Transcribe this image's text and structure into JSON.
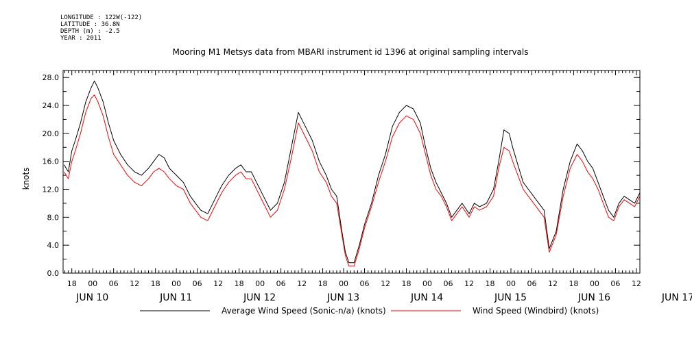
{
  "header": {
    "longitude": "LONGITUDE : 122W(-122)",
    "latitude": "LATITUDE : 36.8N",
    "depth": "DEPTH (m) : -2.5",
    "year": "YEAR : 2011"
  },
  "chart_data": {
    "type": "line",
    "title": "Mooring M1 Metsys data from MBARI instrument id 1396 at original sampling intervals",
    "ylabel": "knots",
    "ylim": [
      0,
      29
    ],
    "yticks": [
      0.0,
      4.0,
      8.0,
      12.0,
      16.0,
      20.0,
      24.0,
      28.0
    ],
    "ytick_labels": [
      "0.0",
      "4.0",
      "8.0",
      "12.0",
      "16.0",
      "20.0",
      "24.0",
      "28.0"
    ],
    "x_unit": "hours since Jun 10 00:00",
    "xlim": [
      -8.5,
      157
    ],
    "xticks": [
      {
        "h": -6,
        "label": "18"
      },
      {
        "h": 0,
        "label": "00"
      },
      {
        "h": 6,
        "label": "06"
      },
      {
        "h": 12,
        "label": "12"
      },
      {
        "h": 18,
        "label": "18"
      },
      {
        "h": 24,
        "label": "00"
      },
      {
        "h": 30,
        "label": "06"
      },
      {
        "h": 36,
        "label": "12"
      },
      {
        "h": 42,
        "label": "18"
      },
      {
        "h": 48,
        "label": "00"
      },
      {
        "h": 54,
        "label": "06"
      },
      {
        "h": 60,
        "label": "12"
      },
      {
        "h": 66,
        "label": "18"
      },
      {
        "h": 72,
        "label": "00"
      },
      {
        "h": 78,
        "label": "06"
      },
      {
        "h": 84,
        "label": "12"
      },
      {
        "h": 90,
        "label": "18"
      },
      {
        "h": 96,
        "label": "00"
      },
      {
        "h": 102,
        "label": "06"
      },
      {
        "h": 108,
        "label": "12"
      },
      {
        "h": 114,
        "label": "18"
      },
      {
        "h": 120,
        "label": "00"
      },
      {
        "h": 126,
        "label": "06"
      },
      {
        "h": 132,
        "label": "12"
      },
      {
        "h": 138,
        "label": "18"
      },
      {
        "h": 144,
        "label": "00"
      },
      {
        "h": 150,
        "label": "06"
      },
      {
        "h": 156,
        "label": "12"
      }
    ],
    "date_labels": [
      {
        "h": 0,
        "label": "JUN 10"
      },
      {
        "h": 24,
        "label": "JUN 11"
      },
      {
        "h": 48,
        "label": "JUN 12"
      },
      {
        "h": 72,
        "label": "JUN 13"
      },
      {
        "h": 96,
        "label": "JUN 14"
      },
      {
        "h": 120,
        "label": "JUN 15"
      },
      {
        "h": 144,
        "label": "JUN 16"
      },
      {
        "h": 168,
        "label": "JUN 17"
      }
    ],
    "series": [
      {
        "name": "Average Wind Speed (Sonic-n/a) (knots)",
        "color": "#000000",
        "x": [
          -8.2,
          -7,
          -6,
          -5,
          -3.5,
          -2,
          -0.5,
          0.5,
          1.5,
          3,
          4.5,
          6,
          8,
          10,
          12,
          14,
          16,
          17.5,
          19,
          20.5,
          22,
          24,
          26,
          28,
          29.5,
          31,
          33,
          35,
          37,
          39,
          41,
          42.5,
          44,
          45.5,
          47,
          49,
          51,
          53,
          55,
          57,
          59,
          61,
          63,
          65,
          67,
          68.5,
          70,
          71.5,
          72.5,
          73.5,
          75,
          76.5,
          78,
          80,
          82,
          84,
          86,
          88,
          90,
          92,
          94,
          95.5,
          97,
          98.5,
          100,
          101.5,
          103,
          104.5,
          106,
          108,
          109.5,
          111,
          113,
          115,
          116.5,
          118,
          119.5,
          120.5,
          122,
          123.5,
          125,
          126.5,
          128,
          129.5,
          131,
          133,
          135,
          137,
          139,
          140.5,
          142,
          143.5,
          145,
          146.5,
          148,
          149.5,
          151,
          152.5,
          154,
          155.5,
          157
        ],
        "y": [
          15.5,
          14.5,
          17.5,
          19,
          21.5,
          24.5,
          26.5,
          27.5,
          26.5,
          24.5,
          21.5,
          19,
          17,
          15.5,
          14.5,
          14,
          15,
          16,
          17,
          16.5,
          15,
          14,
          13,
          11,
          10,
          9,
          8.5,
          10.5,
          12.5,
          14,
          15,
          15.5,
          14.5,
          14.5,
          13,
          11,
          9,
          10,
          13,
          18,
          23,
          21,
          19,
          16,
          14,
          12,
          11,
          6,
          3,
          1.5,
          1.5,
          4,
          7,
          10,
          14,
          17,
          21,
          23,
          24,
          23.5,
          21.5,
          18,
          15,
          13,
          11.5,
          10,
          8,
          9,
          10,
          8.5,
          10,
          9.5,
          10,
          12,
          16,
          20.5,
          20,
          18,
          15.5,
          13,
          12,
          11,
          10,
          9,
          3.5,
          6,
          12,
          16,
          18.5,
          17.5,
          16,
          15,
          13,
          11,
          9,
          8,
          10,
          11,
          10.5,
          10,
          11.5
        ]
      },
      {
        "name": "Wind Speed (Windbird) (knots)",
        "color": "#ff0000",
        "x": [
          -8.2,
          -7,
          -6,
          -5,
          -3.5,
          -2,
          -0.5,
          0.5,
          1.5,
          3,
          4.5,
          6,
          8,
          10,
          12,
          14,
          16,
          17.5,
          19,
          20.5,
          22,
          24,
          26,
          28,
          29.5,
          31,
          33,
          35,
          37,
          39,
          41,
          42.5,
          44,
          45.5,
          47,
          49,
          51,
          53,
          55,
          57,
          59,
          61,
          63,
          65,
          67,
          68.5,
          70,
          71.5,
          72.5,
          73.5,
          75,
          76.5,
          78,
          80,
          82,
          84,
          86,
          88,
          90,
          92,
          94,
          95.5,
          97,
          98.5,
          100,
          101.5,
          103,
          104.5,
          106,
          108,
          109.5,
          111,
          113,
          115,
          116.5,
          118,
          119.5,
          120.5,
          122,
          123.5,
          125,
          126.5,
          128,
          129.5,
          131,
          133,
          135,
          137,
          139,
          140.5,
          142,
          143.5,
          145,
          146.5,
          148,
          149.5,
          151,
          152.5,
          154,
          155.5,
          157
        ],
        "y": [
          14.5,
          13.5,
          16,
          17.5,
          20,
          23,
          25,
          25.5,
          24.5,
          22.5,
          19.5,
          17,
          15.5,
          14,
          13,
          12.5,
          13.5,
          14.5,
          15,
          14.5,
          13.5,
          12.5,
          12,
          10,
          9,
          8,
          7.5,
          9.5,
          11.5,
          13,
          14,
          14.5,
          13.5,
          13.5,
          12,
          10,
          8,
          9,
          12,
          16.5,
          21.5,
          19.5,
          17.5,
          14.5,
          13,
          11,
          10,
          5.5,
          2.5,
          1,
          1,
          3.5,
          6.5,
          9.5,
          13,
          16,
          19.5,
          21.5,
          22.5,
          22,
          20,
          17,
          14,
          12,
          11,
          9.5,
          7.5,
          8.5,
          9.5,
          8,
          9.5,
          9,
          9.5,
          11,
          15,
          18,
          17.5,
          16,
          14,
          12,
          11,
          10,
          9,
          8,
          3,
          5.5,
          11,
          15,
          17,
          16,
          14.5,
          13.5,
          12,
          10,
          8,
          7.5,
          9.5,
          10.5,
          10,
          9.5,
          11
        ]
      }
    ],
    "grid": false,
    "legend": "bottom"
  }
}
